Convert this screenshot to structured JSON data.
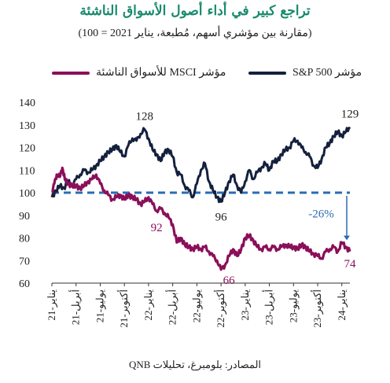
{
  "header": {
    "title": "تراجع كبير في أداء أصول الأسواق الناشئة",
    "subtitle": "(مقارنة بين مؤشري أسهم، مُطبعة، يناير 2021 = 100)"
  },
  "legend": {
    "sp500": "مؤشر S&P 500",
    "msci": "مؤشر MSCI للأسواق الناشئة"
  },
  "colors": {
    "sp500": "#14213d",
    "msci": "#8a0f5a",
    "reference": "#2a6bb5",
    "title": "#1a8a6e"
  },
  "footer": {
    "source": "المصادر: بلومبرغ، تحليلات QNB"
  },
  "chart_data": {
    "type": "line",
    "x_unit": "month",
    "ylim": [
      60,
      140
    ],
    "yticks": [
      60,
      70,
      80,
      90,
      100,
      110,
      120,
      130,
      140
    ],
    "xticks": [
      {
        "x": 0,
        "label": "يناير-21"
      },
      {
        "x": 3,
        "label": "أبريل-21"
      },
      {
        "x": 6,
        "label": "يوليو-21"
      },
      {
        "x": 9,
        "label": "أكتوبر-21"
      },
      {
        "x": 12,
        "label": "يناير-22"
      },
      {
        "x": 15,
        "label": "أبريل-22"
      },
      {
        "x": 18,
        "label": "يوليو-22"
      },
      {
        "x": 21,
        "label": "أكتوبر-22"
      },
      {
        "x": 24,
        "label": "يناير-23"
      },
      {
        "x": 27,
        "label": "أبريل-23"
      },
      {
        "x": 30,
        "label": "يوليو-23"
      },
      {
        "x": 33,
        "label": "أكتوبر-23"
      },
      {
        "x": 36,
        "label": "يناير-24"
      }
    ],
    "reference_line": 100,
    "series": [
      {
        "name": "مؤشر S&P 500",
        "key": "sp500",
        "points": [
          [
            0,
            98
          ],
          [
            0.5,
            101
          ],
          [
            1,
            103
          ],
          [
            1.5,
            102
          ],
          [
            2,
            105
          ],
          [
            2.5,
            103
          ],
          [
            3,
            106
          ],
          [
            3.5,
            108
          ],
          [
            4,
            110
          ],
          [
            4.5,
            109
          ],
          [
            5,
            110
          ],
          [
            5.5,
            112
          ],
          [
            6,
            114
          ],
          [
            6.5,
            116
          ],
          [
            7,
            118
          ],
          [
            7.5,
            119
          ],
          [
            8,
            121
          ],
          [
            8.5,
            118
          ],
          [
            9,
            116
          ],
          [
            9.5,
            121
          ],
          [
            10,
            124
          ],
          [
            10.5,
            123
          ],
          [
            11,
            126
          ],
          [
            11.5,
            128
          ],
          [
            12,
            124
          ],
          [
            12.5,
            119
          ],
          [
            13,
            117
          ],
          [
            13.5,
            114
          ],
          [
            14,
            118
          ],
          [
            14.5,
            119
          ],
          [
            15,
            116
          ],
          [
            15.5,
            109
          ],
          [
            16,
            108
          ],
          [
            16.5,
            103
          ],
          [
            17,
            101
          ],
          [
            17.5,
            98
          ],
          [
            18,
            104
          ],
          [
            18.5,
            110
          ],
          [
            19,
            113
          ],
          [
            19.5,
            105
          ],
          [
            20,
            101
          ],
          [
            20.5,
            98
          ],
          [
            21,
            96
          ],
          [
            21.5,
            100
          ],
          [
            22,
            105
          ],
          [
            22.5,
            108
          ],
          [
            23,
            103
          ],
          [
            23.5,
            100
          ],
          [
            24,
            105
          ],
          [
            24.5,
            110
          ],
          [
            25,
            106
          ],
          [
            25.5,
            109
          ],
          [
            26,
            111
          ],
          [
            26.5,
            113
          ],
          [
            27,
            110
          ],
          [
            27.5,
            114
          ],
          [
            28,
            114
          ],
          [
            28.5,
            117
          ],
          [
            29,
            119
          ],
          [
            29.5,
            120
          ],
          [
            30,
            123
          ],
          [
            30.5,
            123
          ],
          [
            31,
            120
          ],
          [
            31.5,
            118
          ],
          [
            32,
            116
          ],
          [
            32.5,
            112
          ],
          [
            33,
            111
          ],
          [
            33.5,
            115
          ],
          [
            34,
            120
          ],
          [
            34.5,
            122
          ],
          [
            35,
            125
          ],
          [
            35.5,
            127
          ],
          [
            36,
            125
          ],
          [
            36.5,
            127
          ],
          [
            37,
            129
          ]
        ]
      },
      {
        "name": "مؤشر MSCI للأسواق الناشئة",
        "key": "msci",
        "points": [
          [
            0,
            100
          ],
          [
            0.3,
            104
          ],
          [
            0.6,
            108
          ],
          [
            1,
            107
          ],
          [
            1.3,
            111
          ],
          [
            1.6,
            106
          ],
          [
            2,
            104
          ],
          [
            2.5,
            103
          ],
          [
            3,
            103
          ],
          [
            3.5,
            102
          ],
          [
            4,
            103
          ],
          [
            4.5,
            105
          ],
          [
            5,
            106
          ],
          [
            5.5,
            108
          ],
          [
            6,
            104
          ],
          [
            6.5,
            101
          ],
          [
            7,
            99
          ],
          [
            7.5,
            97
          ],
          [
            8,
            98
          ],
          [
            8.5,
            99
          ],
          [
            9,
            97
          ],
          [
            9.5,
            99
          ],
          [
            10,
            98
          ],
          [
            10.5,
            97
          ],
          [
            11,
            95
          ],
          [
            11.5,
            96
          ],
          [
            12,
            98
          ],
          [
            12.5,
            95
          ],
          [
            13,
            92
          ],
          [
            13.5,
            93
          ],
          [
            14,
            91
          ],
          [
            14.5,
            89
          ],
          [
            15,
            86
          ],
          [
            15.5,
            78
          ],
          [
            16,
            80
          ],
          [
            16.5,
            77
          ],
          [
            17,
            76
          ],
          [
            17.5,
            75
          ],
          [
            18,
            76
          ],
          [
            18.5,
            75
          ],
          [
            19,
            76
          ],
          [
            19.5,
            74
          ],
          [
            20,
            72
          ],
          [
            20.5,
            70
          ],
          [
            21,
            66
          ],
          [
            21.5,
            68
          ],
          [
            22,
            72
          ],
          [
            22.5,
            75
          ],
          [
            23,
            72
          ],
          [
            23.5,
            75
          ],
          [
            24,
            80
          ],
          [
            24.5,
            81
          ],
          [
            25,
            79
          ],
          [
            25.5,
            76
          ],
          [
            26,
            75
          ],
          [
            26.5,
            76
          ],
          [
            27,
            75
          ],
          [
            27.5,
            76
          ],
          [
            28,
            75
          ],
          [
            28.5,
            76
          ],
          [
            29,
            77
          ],
          [
            29.5,
            76
          ],
          [
            30,
            76
          ],
          [
            30.5,
            75
          ],
          [
            31,
            77
          ],
          [
            31.5,
            76
          ],
          [
            32,
            74
          ],
          [
            32.5,
            73
          ],
          [
            33,
            72
          ],
          [
            33.5,
            71
          ],
          [
            34,
            74
          ],
          [
            34.5,
            75
          ],
          [
            35,
            76
          ],
          [
            35.5,
            74
          ],
          [
            36,
            78
          ],
          [
            36.5,
            76
          ],
          [
            37,
            74
          ]
        ]
      }
    ],
    "annotations": [
      {
        "text": "128",
        "x": 11.5,
        "y": 128,
        "series": "sp500"
      },
      {
        "text": "96",
        "x": 21,
        "y": 96,
        "series": "sp500"
      },
      {
        "text": "129",
        "x": 37,
        "y": 129,
        "series": "sp500"
      },
      {
        "text": "92",
        "x": 13,
        "y": 92,
        "series": "msci"
      },
      {
        "text": "66",
        "x": 21,
        "y": 66,
        "series": "msci"
      },
      {
        "text": "74",
        "x": 37,
        "y": 74,
        "series": "msci"
      },
      {
        "text": "-26%",
        "x": 36,
        "y": 87,
        "series": "reference"
      }
    ]
  }
}
